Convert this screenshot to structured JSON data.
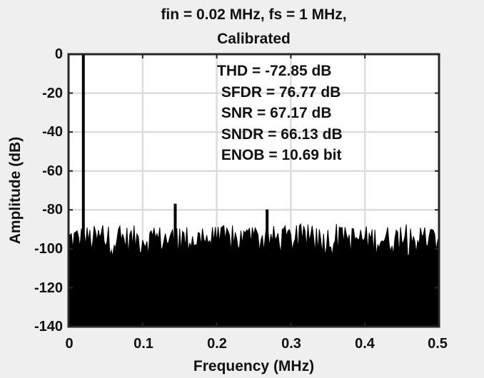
{
  "chart_data": {
    "type": "line",
    "subtype": "spectrum (filled to baseline)",
    "title": "fin = 0.02 MHz,  fs = 1 MHz,",
    "subtitle": "Calibrated",
    "xlabel": "Frequency (MHz)",
    "ylabel": "Amplitude (dB)",
    "xlim": [
      0,
      0.5
    ],
    "ylim": [
      -140,
      0
    ],
    "xticks": [
      "0",
      "0.1",
      "0.2",
      "0.3",
      "0.4",
      "0.5"
    ],
    "yticks": [
      "0",
      "-20",
      "-40",
      "-60",
      "-80",
      "-100",
      "-120",
      "-140"
    ],
    "grid": true,
    "series_color": "#000000",
    "fundamental": {
      "frequency_mhz": 0.02,
      "amplitude_db": 0
    },
    "notable_spurs": [
      {
        "frequency_mhz": 0.144,
        "amplitude_db": -77
      },
      {
        "frequency_mhz": 0.268,
        "amplitude_db": -80
      }
    ],
    "noise_floor_db_range": [
      -104,
      -88
    ],
    "annotations": [
      "THD = -72.85 dB",
      " SFDR = 76.77 dB",
      " SNR = 67.17 dB",
      " SNDR = 66.13 dB",
      " ENOB = 10.69 bit"
    ]
  },
  "metrics": {
    "thd": "THD = -72.85 dB",
    "sfdr": " SFDR = 76.77 dB",
    "snr": " SNR = 67.17 dB",
    "sndr": " SNDR = 66.13 dB",
    "enob": " ENOB = 10.69 bit"
  }
}
